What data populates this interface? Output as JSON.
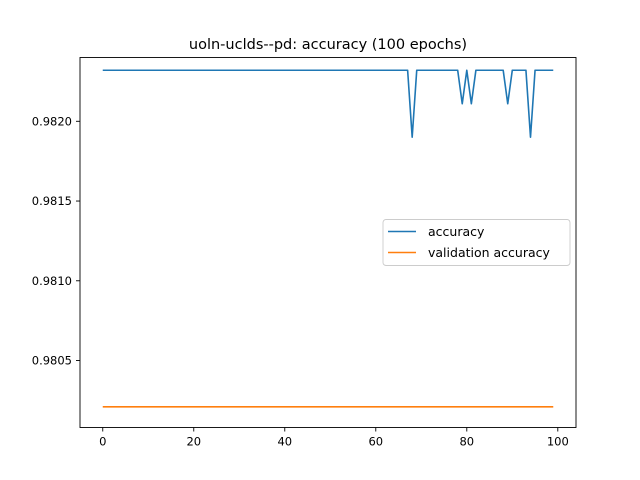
{
  "chart_data": {
    "type": "line",
    "title": "uoln-uclds--pd: accuracy (100 epochs)",
    "xlabel": "",
    "ylabel": "",
    "xlim": [
      -5,
      104
    ],
    "ylim": [
      0.98008,
      0.9824
    ],
    "xticks": [
      0,
      20,
      40,
      60,
      80,
      100
    ],
    "xtick_labels": [
      "0",
      "20",
      "40",
      "60",
      "80",
      "100"
    ],
    "yticks": [
      0.9805,
      0.981,
      0.9815,
      0.982
    ],
    "ytick_labels": [
      "0.9805",
      "0.9810",
      "0.9815",
      "0.9820"
    ],
    "grid": false,
    "legend_position": "center-right",
    "series": [
      {
        "name": "accuracy",
        "color": "#1f77b4",
        "x": [
          0,
          67,
          68,
          69,
          78,
          79,
          80,
          81,
          82,
          88,
          89,
          90,
          93,
          94,
          95,
          99
        ],
        "y": [
          0.98232,
          0.98232,
          0.9819,
          0.98232,
          0.98232,
          0.98211,
          0.98232,
          0.98211,
          0.98232,
          0.98232,
          0.98211,
          0.98232,
          0.98232,
          0.9819,
          0.98232,
          0.98232
        ]
      },
      {
        "name": "validation accuracy",
        "color": "#ff7f0e",
        "x": [
          0,
          99
        ],
        "y": [
          0.98021,
          0.98021
        ]
      }
    ]
  }
}
